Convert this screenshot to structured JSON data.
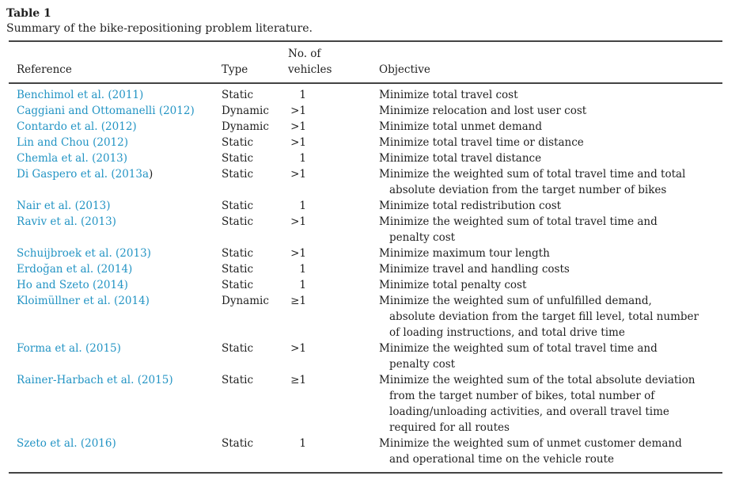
{
  "colors": {
    "background": "#ffffff",
    "text": "#1f1f1f",
    "rule": "#444444",
    "link": "#2394c4"
  },
  "table": {
    "label": "Table 1",
    "caption": "Summary of the bike-repositioning problem literature.",
    "columns": {
      "reference": "Reference",
      "type": "Type",
      "vehicles_line1": "No. of",
      "vehicles_line2": "vehicles",
      "objective": "Objective"
    },
    "rows": [
      {
        "reference": "Benchimol et al. (2011)",
        "type": "Static",
        "vehicles": "1",
        "objective_lines": [
          "Minimize total travel cost"
        ]
      },
      {
        "reference": "Caggiani and Ottomanelli (2012)",
        "type": "Dynamic",
        "vehicles": ">1",
        "objective_lines": [
          "Minimize relocation and lost user cost"
        ]
      },
      {
        "reference": "Contardo et al. (2012)",
        "type": "Dynamic",
        "vehicles": ">1",
        "objective_lines": [
          "Minimize total unmet demand"
        ]
      },
      {
        "reference": "Lin and Chou (2012)",
        "type": "Static",
        "vehicles": ">1",
        "objective_lines": [
          "Minimize total travel time or distance"
        ]
      },
      {
        "reference": "Chemla et al. (2013)",
        "type": "Static",
        "vehicles": "1",
        "objective_lines": [
          "Minimize total travel distance"
        ]
      },
      {
        "reference": "Di Gaspero et al. (2013a",
        "reference_suffix": ")",
        "type": "Static",
        "vehicles": ">1",
        "objective_lines": [
          "Minimize the weighted sum of total travel time and total",
          "absolute deviation from the target number of bikes"
        ]
      },
      {
        "reference": "Nair et al. (2013)",
        "type": "Static",
        "vehicles": "1",
        "objective_lines": [
          "Minimize total redistribution cost"
        ]
      },
      {
        "reference": "Raviv et al. (2013)",
        "type": "Static",
        "vehicles": ">1",
        "objective_lines": [
          "Minimize the weighted sum of total travel time and",
          "penalty cost"
        ]
      },
      {
        "reference": "Schuijbroek et al. (2013)",
        "type": "Static",
        "vehicles": ">1",
        "objective_lines": [
          "Minimize maximum tour length"
        ]
      },
      {
        "reference": "Erdoğan et al. (2014)",
        "type": "Static",
        "vehicles": "1",
        "objective_lines": [
          "Minimize travel and handling costs"
        ]
      },
      {
        "reference": "Ho and Szeto (2014)",
        "type": "Static",
        "vehicles": "1",
        "objective_lines": [
          "Minimize total penalty cost"
        ]
      },
      {
        "reference": "Kloimüllner et al. (2014)",
        "type": "Dynamic",
        "vehicles": "≥1",
        "objective_lines": [
          "Minimize the weighted sum of unfulfilled demand,",
          "absolute deviation from the target fill level, total number",
          "of loading instructions, and total drive time"
        ]
      },
      {
        "reference": "Forma et al. (2015)",
        "type": "Static",
        "vehicles": ">1",
        "objective_lines": [
          "Minimize the weighted sum of total travel time and",
          "penalty cost"
        ]
      },
      {
        "reference": "Rainer-Harbach et al. (2015)",
        "type": "Static",
        "vehicles": "≥1",
        "objective_lines": [
          "Minimize the weighted sum of the total absolute deviation",
          "from the target number of bikes, total number of",
          "loading/unloading activities, and overall travel time",
          "required for all routes"
        ]
      },
      {
        "reference": "Szeto et al. (2016)",
        "type": "Static",
        "vehicles": "1",
        "objective_lines": [
          "Minimize the weighted sum of unmet customer demand",
          "and operational time on the vehicle route"
        ]
      }
    ]
  }
}
